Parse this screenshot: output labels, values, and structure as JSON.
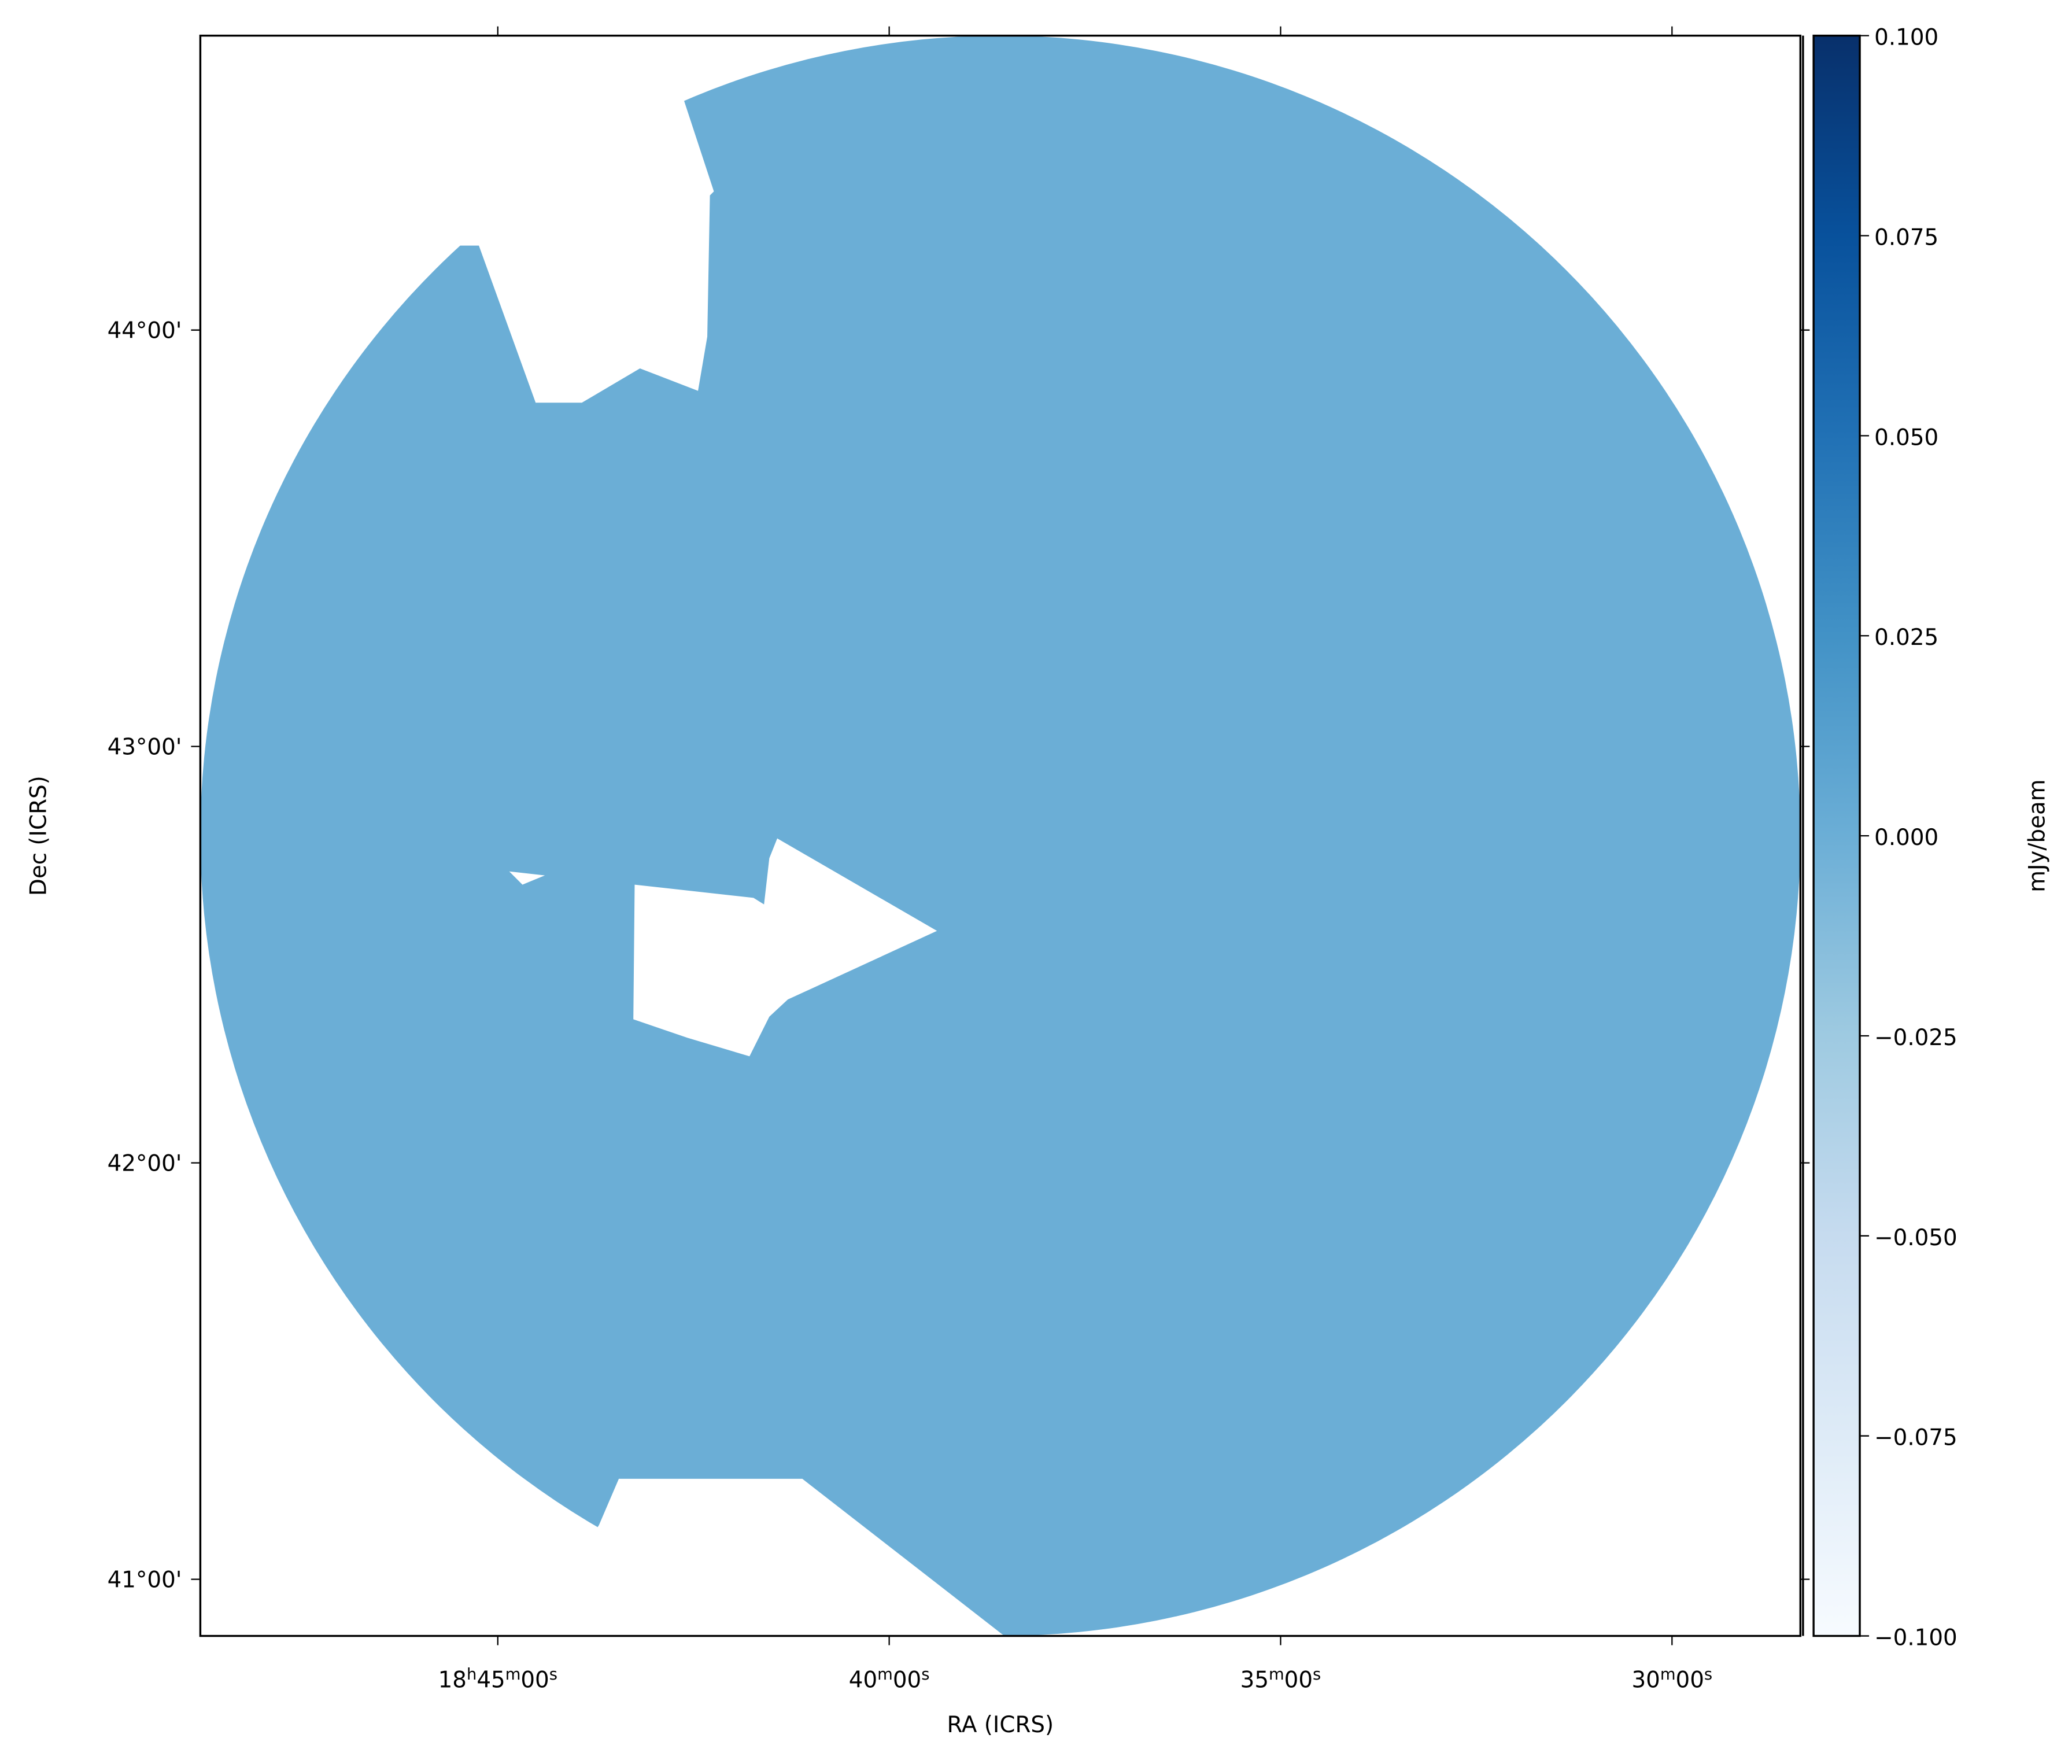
{
  "chart_data": {
    "type": "image",
    "x_label": "RA (ICRS)",
    "y_label": "Dec (ICRS)",
    "xlim": [
      282.2,
      277.09
    ],
    "xticks": [
      {
        "value": 281.25,
        "label": "18h45m00s"
      },
      {
        "value": 280.0,
        "label": "40m00s"
      },
      {
        "value": 278.75,
        "label": "35m00s"
      },
      {
        "value": 277.5,
        "label": "30m00s"
      }
    ],
    "ylim": [
      40.864,
      44.707
    ],
    "yticks": [
      {
        "value": 44,
        "label": "44°00'"
      },
      {
        "value": 43,
        "label": "43°00'"
      },
      {
        "value": 42,
        "label": "42°00'"
      },
      {
        "value": 41,
        "label": "41°00'"
      }
    ],
    "colorbar": {
      "label": "mJy/beam",
      "lim": [
        -0.1,
        0.1
      ],
      "ticks": [
        {
          "value": 0.1,
          "label": "0.100"
        },
        {
          "value": 0.075,
          "label": "0.075"
        },
        {
          "value": 0.05,
          "label": "0.050"
        },
        {
          "value": 0.025,
          "label": "0.025"
        },
        {
          "value": 0,
          "label": "0.000"
        },
        {
          "value": -0.025,
          "label": "−0.025"
        },
        {
          "value": -0.05,
          "label": "−0.050"
        },
        {
          "value": -0.075,
          "label": "−0.075"
        },
        {
          "value": -0.1,
          "label": "−0.100"
        }
      ]
    }
  }
}
